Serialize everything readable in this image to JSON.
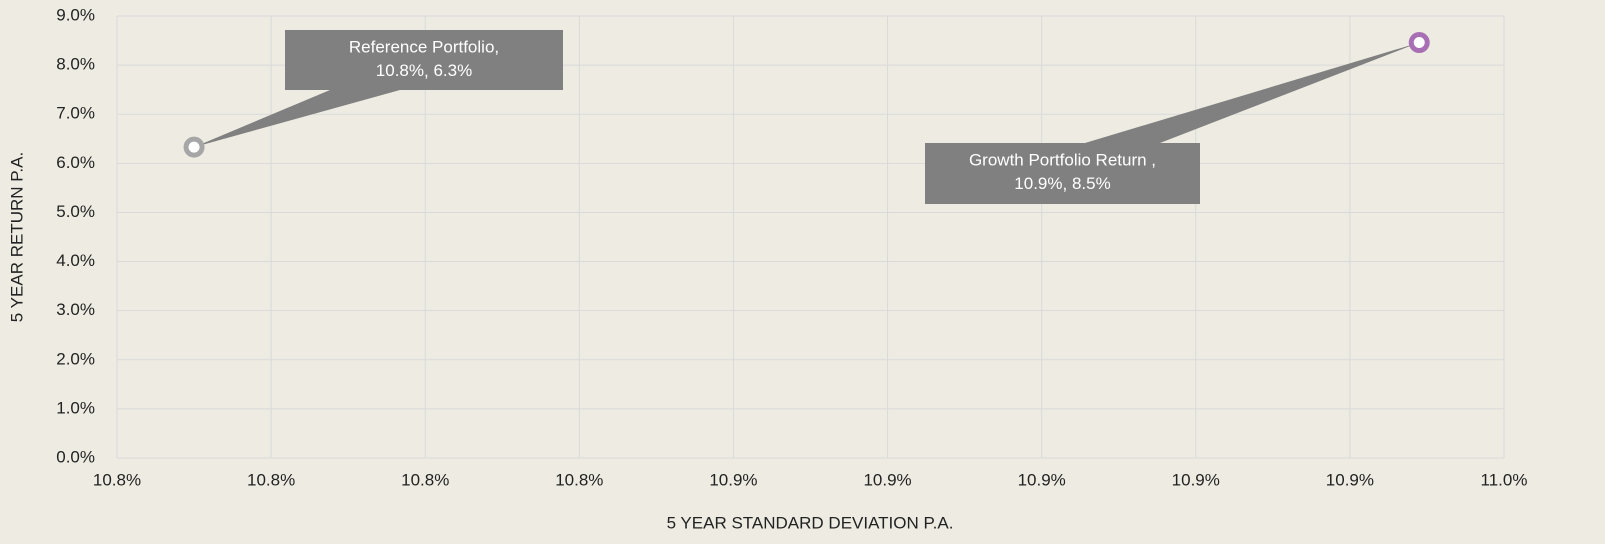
{
  "chart_data": {
    "type": "scatter",
    "x_label": "5 YEAR STANDARD DEVIATION P.A.",
    "y_label": "5 YEAR RETURN P.A.",
    "xlim": [
      10.78,
      10.96
    ],
    "xticks": [
      {
        "value": 10.78,
        "label": "10.8%"
      },
      {
        "value": 10.8,
        "label": "10.8%"
      },
      {
        "value": 10.82,
        "label": "10.8%"
      },
      {
        "value": 10.84,
        "label": "10.8%"
      },
      {
        "value": 10.86,
        "label": "10.9%"
      },
      {
        "value": 10.88,
        "label": "10.9%"
      },
      {
        "value": 10.9,
        "label": "10.9%"
      },
      {
        "value": 10.92,
        "label": "10.9%"
      },
      {
        "value": 10.94,
        "label": "10.9%"
      },
      {
        "value": 10.96,
        "label": "11.0%"
      }
    ],
    "ylim": [
      0,
      9
    ],
    "yticks": [
      {
        "value": 0,
        "label": "0.0%"
      },
      {
        "value": 1,
        "label": "1.0%"
      },
      {
        "value": 2,
        "label": "2.0%"
      },
      {
        "value": 3,
        "label": "3.0%"
      },
      {
        "value": 4,
        "label": "4.0%"
      },
      {
        "value": 5,
        "label": "5.0%"
      },
      {
        "value": 6,
        "label": "6.0%"
      },
      {
        "value": 7,
        "label": "7.0%"
      },
      {
        "value": 8,
        "label": "8.0%"
      },
      {
        "value": 9,
        "label": "9.0%"
      }
    ],
    "grid": true,
    "series": [
      {
        "name": "Reference Portfolio,",
        "color": "#a6a6a6",
        "x": [
          10.79
        ],
        "values": [
          6.33
        ],
        "x_labels": [
          "10.8%"
        ],
        "value_labels": [
          "6.3%"
        ]
      },
      {
        "name": "Growth Portfolio Return ,",
        "color": "#a86fb4",
        "x": [
          10.949
        ],
        "values": [
          8.46
        ],
        "x_labels": [
          "10.9%"
        ],
        "value_labels": [
          "8.5%"
        ]
      }
    ]
  }
}
